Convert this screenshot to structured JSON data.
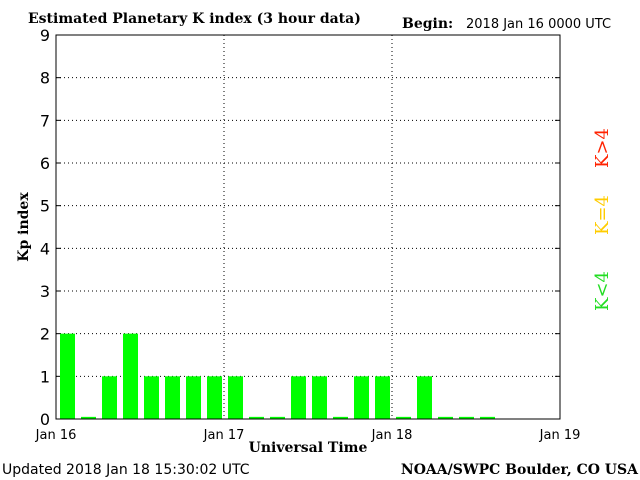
{
  "header": {
    "title": "Estimated Planetary K index (3 hour data)",
    "begin_label": "Begin:",
    "begin_value": "2018 Jan 16 0000 UTC"
  },
  "footer": {
    "updated": "Updated 2018 Jan 18 15:30:02 UTC",
    "source": "NOAA/SWPC Boulder, CO USA"
  },
  "legend": {
    "high": {
      "label": "K>4",
      "color": "#ff2200"
    },
    "mid": {
      "label": "K=4",
      "color": "#ffcc00"
    },
    "low": {
      "label": "K<4",
      "color": "#22dd22"
    }
  },
  "chart_data": {
    "type": "bar",
    "title": "Estimated Planetary K index (3 hour data)",
    "xlabel": "Universal Time",
    "ylabel": "Kp index",
    "ylim": [
      0,
      9
    ],
    "yticks": [
      "0",
      "1",
      "2",
      "3",
      "4",
      "5",
      "6",
      "7",
      "8",
      "9"
    ],
    "xticks": [
      "Jan 16",
      "Jan 17",
      "Jan 18",
      "Jan 19"
    ],
    "slots_total": 24,
    "values": [
      2,
      0.05,
      1,
      2,
      1,
      1,
      1,
      1,
      1,
      0.05,
      0.05,
      1,
      1,
      0.05,
      1,
      1,
      0.05,
      1,
      0.05,
      0.05,
      0.05
    ],
    "bar_color": "#00ff00",
    "grid": true
  }
}
